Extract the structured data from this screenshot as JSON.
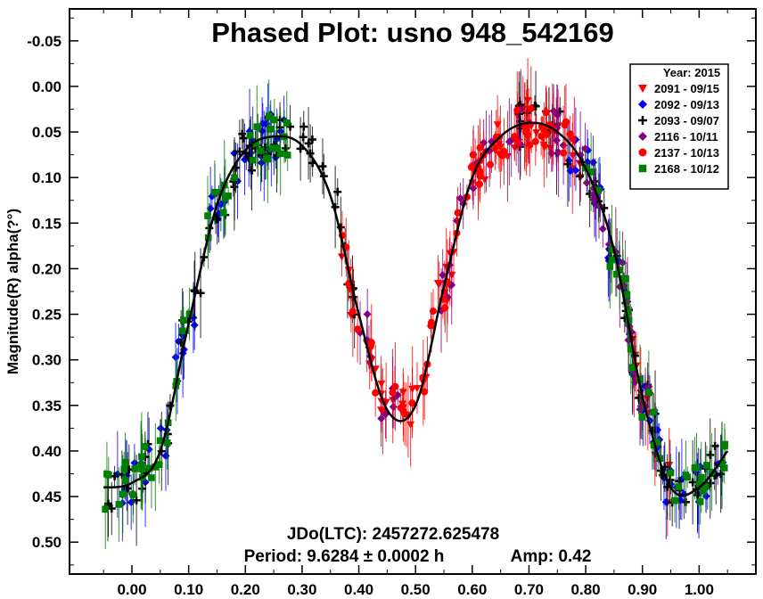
{
  "chart_data": {
    "type": "scatter",
    "title": "Phased Plot: usno 948_542169",
    "xlabel": "",
    "ylabel": "Magnitude(R) alpha(?°)",
    "xlim": [
      -0.11,
      1.1
    ],
    "ylim": [
      -0.085,
      0.535
    ],
    "y_inverted": true,
    "x_ticks": [
      "0.00",
      "0.10",
      "0.20",
      "0.30",
      "0.40",
      "0.50",
      "0.60",
      "0.70",
      "0.80",
      "0.90",
      "1.00"
    ],
    "y_ticks": [
      "-0.05",
      "0.00",
      "0.05",
      "0.10",
      "0.15",
      "0.20",
      "0.25",
      "0.30",
      "0.35",
      "0.40",
      "0.45",
      "0.50"
    ],
    "grid": false,
    "legend_position": "top-right",
    "legend_title": "Year: 2015",
    "series": [
      {
        "name": "2091 - 09/15",
        "marker": "triangle-down",
        "color": "#ff0000"
      },
      {
        "name": "2092 - 09/13",
        "marker": "diamond",
        "color": "#0000ff"
      },
      {
        "name": "2093 - 09/07",
        "marker": "plus",
        "color": "#000000"
      },
      {
        "name": "2116 - 10/11",
        "marker": "diamond",
        "color": "#800080"
      },
      {
        "name": "2137 - 10/13",
        "marker": "circle",
        "color": "#ff0000"
      },
      {
        "name": "2168 - 10/12",
        "marker": "square",
        "color": "#008000"
      }
    ],
    "fit_curve": {
      "color": "#000000",
      "phase": [
        -0.05,
        0.0,
        0.05,
        0.1,
        0.15,
        0.2,
        0.25,
        0.3,
        0.35,
        0.4,
        0.45,
        0.5,
        0.55,
        0.6,
        0.65,
        0.7,
        0.75,
        0.8,
        0.85,
        0.9,
        0.95,
        1.0,
        1.05
      ],
      "magnitude": [
        0.44,
        0.435,
        0.4,
        0.26,
        0.13,
        0.07,
        0.055,
        0.065,
        0.12,
        0.25,
        0.355,
        0.35,
        0.22,
        0.1,
        0.055,
        0.04,
        0.05,
        0.09,
        0.18,
        0.34,
        0.44,
        0.44,
        0.4
      ]
    },
    "annotations": {
      "epoch": "JDo(LTC): 2457272.625478",
      "period": "Period: 9.6284 ± 0.0002 h",
      "amplitude": "Amp: 0.42"
    }
  }
}
